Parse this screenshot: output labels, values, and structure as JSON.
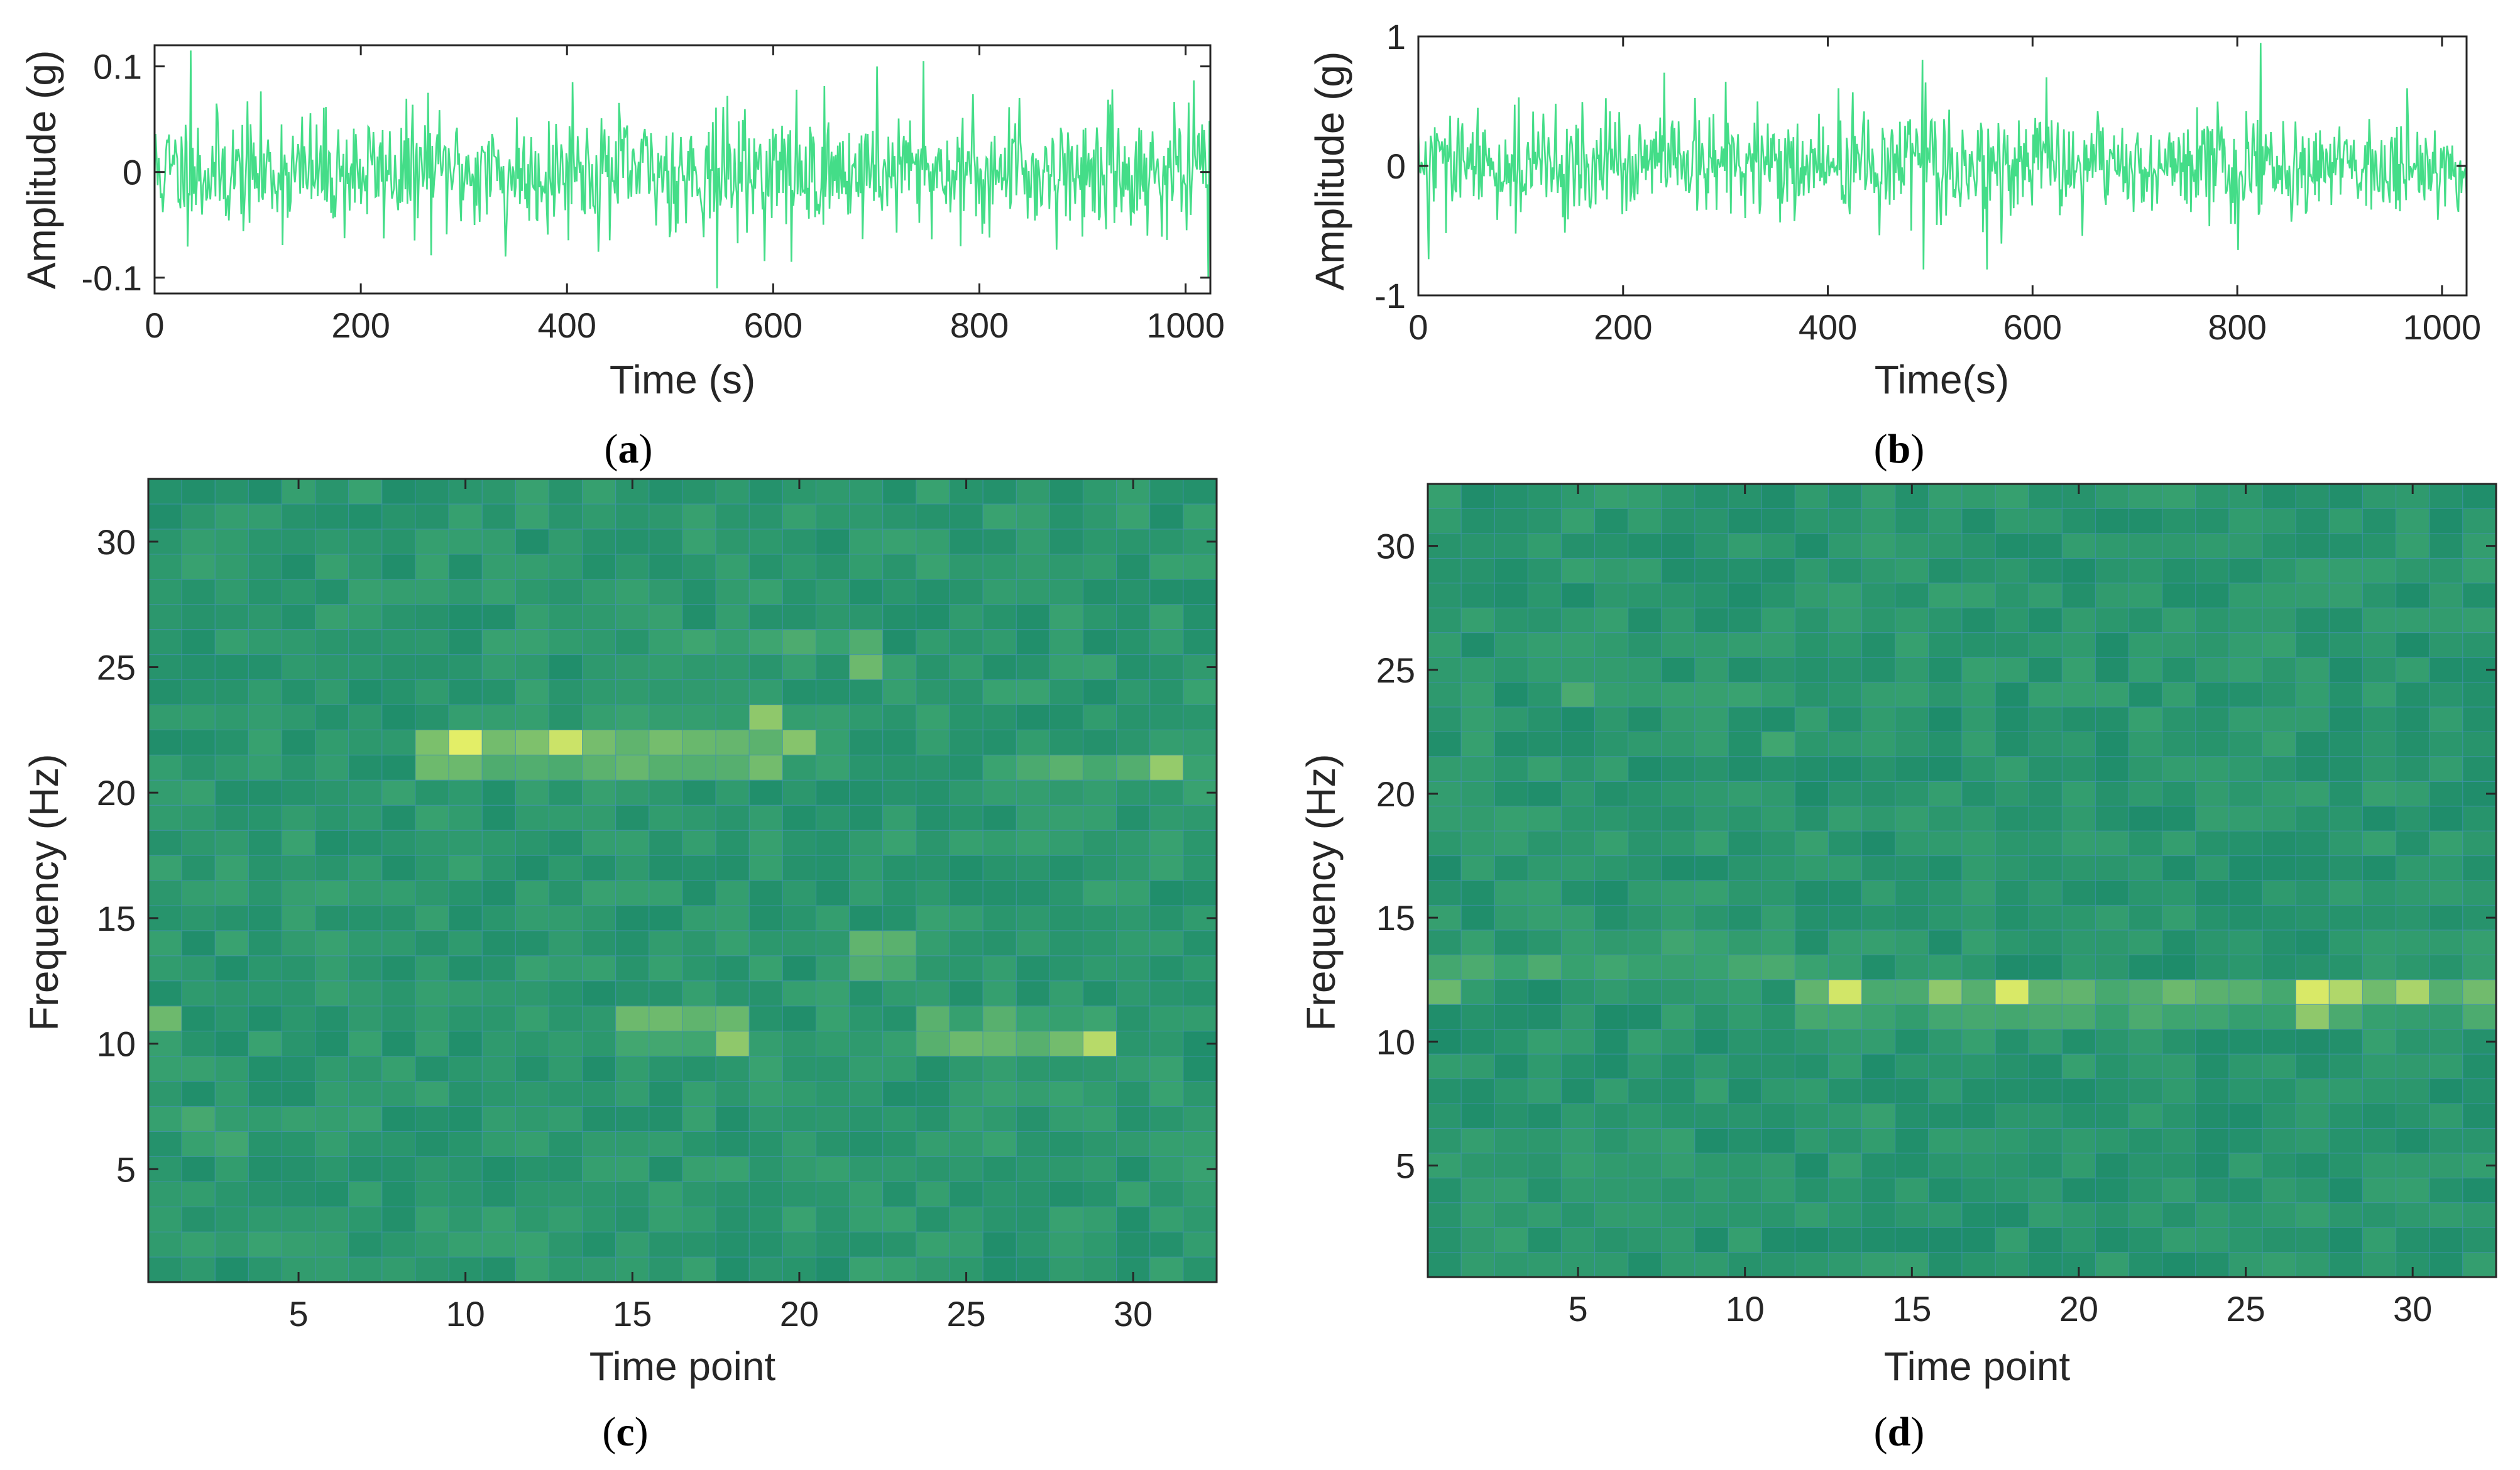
{
  "colors": {
    "signal": "#44dd88",
    "axis": "#262626",
    "heat_low": "#087a66",
    "heat_mid": "#3aa370",
    "heat_high": "#f4f566",
    "cell_edge": "#3f8fb0"
  },
  "chart_data": [
    {
      "id": "a",
      "type": "line",
      "caption_letter": "a",
      "xlabel": "Time (s)",
      "ylabel": "Amplitude (g)",
      "xlim": [
        0,
        1024
      ],
      "ylim": [
        -0.115,
        0.12
      ],
      "xticks": [
        0,
        200,
        400,
        600,
        800,
        1000
      ],
      "xtick_labels": [
        "0",
        "200",
        "400",
        "600",
        "800",
        "1000"
      ],
      "yticks": [
        -0.1,
        0,
        0.1
      ],
      "ytick_labels": [
        "-0.1",
        "0",
        "0.1"
      ],
      "n_points": 1024,
      "noise_std": 0.028,
      "seed": 11,
      "peaks": [
        [
          35,
          0.115
        ],
        [
          545,
          -0.11
        ],
        [
          745,
          0.105
        ],
        [
          1021,
          -0.1
        ],
        [
          405,
          0.085
        ],
        [
          617,
          -0.085
        ],
        [
          700,
          0.1
        ],
        [
          265,
          0.075
        ],
        [
          838,
          0.07
        ],
        [
          340,
          -0.08
        ]
      ]
    },
    {
      "id": "b",
      "type": "line",
      "caption_letter": "b",
      "xlabel": "Time(s)",
      "ylabel": "Amplitude (g)",
      "xlim": [
        0,
        1024
      ],
      "ylim": [
        -1.0,
        1.0
      ],
      "xticks": [
        0,
        200,
        400,
        600,
        800,
        1000
      ],
      "xtick_labels": [
        "0",
        "200",
        "400",
        "600",
        "800",
        "1000"
      ],
      "yticks": [
        -1,
        0,
        1
      ],
      "ytick_labels": [
        "-1",
        "0",
        "1"
      ],
      "n_points": 1024,
      "noise_std": 0.2,
      "seed": 29,
      "peaks": [
        [
          492,
          0.82
        ],
        [
          493,
          -0.8
        ],
        [
          822,
          0.95
        ],
        [
          555,
          -0.8
        ],
        [
          240,
          0.72
        ],
        [
          10,
          -0.72
        ],
        [
          800,
          -0.65
        ],
        [
          965,
          0.6
        ],
        [
          300,
          0.65
        ],
        [
          410,
          0.6
        ]
      ]
    },
    {
      "id": "c",
      "type": "heatmap",
      "caption_letter": "c",
      "xlabel": "Time point",
      "ylabel": "Frequency (Hz)",
      "xlim": [
        0.5,
        32.5
      ],
      "ylim": [
        0.5,
        32.5
      ],
      "grid_size": 32,
      "xticks": [
        5,
        10,
        15,
        20,
        25,
        30
      ],
      "xtick_labels": [
        "5",
        "10",
        "15",
        "20",
        "25",
        "30"
      ],
      "yticks": [
        5,
        10,
        15,
        20,
        25,
        30
      ],
      "ytick_labels": [
        "5",
        "10",
        "15",
        "20",
        "25",
        "30"
      ],
      "seed": 47,
      "base": 0.22,
      "bands": [
        {
          "row": 22,
          "cols": [
            9,
            20
          ],
          "value": 0.62
        },
        {
          "row": 21,
          "cols": [
            9,
            19
          ],
          "value": 0.55
        },
        {
          "row": 21,
          "cols": [
            26,
            32
          ],
          "value": 0.5
        },
        {
          "row": 26,
          "cols": [
            16,
            22
          ],
          "value": 0.45
        },
        {
          "row": 11,
          "cols": [
            15,
            18
          ],
          "value": 0.58
        },
        {
          "row": 10,
          "cols": [
            15,
            18
          ],
          "value": 0.52
        },
        {
          "row": 10,
          "cols": [
            24,
            29
          ],
          "value": 0.55
        },
        {
          "row": 11,
          "cols": [
            24,
            29
          ],
          "value": 0.48
        },
        {
          "row": 14,
          "cols": [
            22,
            23
          ],
          "value": 0.5
        },
        {
          "row": 13,
          "cols": [
            22,
            23
          ],
          "value": 0.55
        },
        {
          "row": 7,
          "cols": [
            2,
            5
          ],
          "value": 0.42
        },
        {
          "row": 6,
          "cols": [
            2,
            3
          ],
          "value": 0.4
        }
      ],
      "hotspots": [
        [
          10,
          22,
          0.95
        ],
        [
          13,
          22,
          0.88
        ],
        [
          29,
          10,
          0.82
        ],
        [
          18,
          10,
          0.7
        ],
        [
          31,
          21,
          0.72
        ],
        [
          19,
          23,
          0.7
        ],
        [
          22,
          25,
          0.6
        ],
        [
          1,
          11,
          0.6
        ]
      ]
    },
    {
      "id": "d",
      "type": "heatmap",
      "caption_letter": "d",
      "xlabel": "Time point",
      "ylabel": "Frequency (Hz)",
      "xlim": [
        0.5,
        32.5
      ],
      "ylim": [
        0.5,
        32.5
      ],
      "grid_size": 32,
      "xticks": [
        5,
        10,
        15,
        20,
        25,
        30
      ],
      "xtick_labels": [
        "5",
        "10",
        "15",
        "20",
        "25",
        "30"
      ],
      "yticks": [
        5,
        10,
        15,
        20,
        25,
        30
      ],
      "ytick_labels": [
        "5",
        "10",
        "15",
        "20",
        "25",
        "30"
      ],
      "seed": 83,
      "base": 0.2,
      "bands": [
        {
          "row": 12,
          "cols": [
            12,
            32
          ],
          "value": 0.55
        },
        {
          "row": 11,
          "cols": [
            12,
            32
          ],
          "value": 0.45
        },
        {
          "row": 13,
          "cols": [
            1,
            12
          ],
          "value": 0.45
        },
        {
          "row": 14,
          "cols": [
            7,
            11
          ],
          "value": 0.42
        },
        {
          "row": 24,
          "cols": [
            9,
            11
          ],
          "value": 0.4
        },
        {
          "row": 22,
          "cols": [
            11,
            11
          ],
          "value": 0.45
        },
        {
          "row": 12,
          "cols": [
            1,
            1
          ],
          "value": 0.55
        }
      ],
      "hotspots": [
        [
          13,
          12,
          0.9
        ],
        [
          18,
          12,
          0.92
        ],
        [
          27,
          12,
          0.92
        ],
        [
          28,
          12,
          0.8
        ],
        [
          30,
          12,
          0.78
        ],
        [
          16,
          12,
          0.7
        ],
        [
          27,
          11,
          0.7
        ],
        [
          5,
          24,
          0.5
        ]
      ]
    }
  ]
}
